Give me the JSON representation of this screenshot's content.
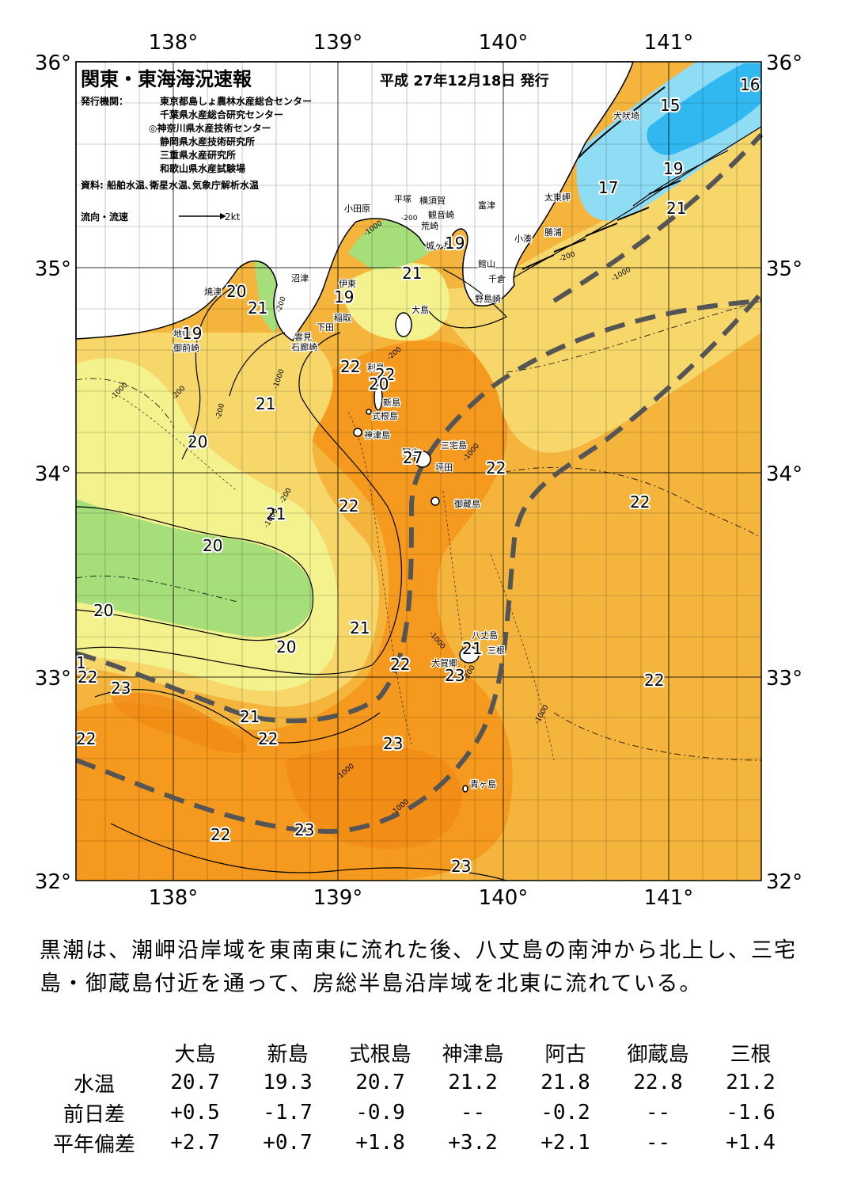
{
  "map": {
    "title": "関東・東海海況速報",
    "issue_date": "平成 27年12月18日 発行",
    "publisher_label": "発行機関：",
    "publishers": [
      "東京都島しょ農林水産総合センター",
      "千葉県水産総合研究センター",
      "◎神奈川県水産技術センター",
      "静岡県水産技術研究所",
      "三重県水産研究所",
      "和歌山県水産試験場"
    ],
    "sources": "資料: 船舶水温､衛星水温､気象庁解析水温",
    "current_legend": "流向・流速",
    "current_scale": "2kt",
    "lon_labels": [
      "138°",
      "139°",
      "140°",
      "141°"
    ],
    "lat_labels": [
      "36°",
      "35°",
      "34°",
      "33°",
      "32°"
    ],
    "place_names": {
      "inubosaki": "犬吠埼",
      "taitomisaki": "太東岬",
      "katsuura": "勝浦",
      "kominato": "小湊",
      "tateyama": "館山",
      "chikura": "千倉",
      "nojimazaki": "野島崎",
      "futtsu": "富津",
      "kannonzaki": "観音崎",
      "yokosuka": "横須賀",
      "hiratsuka": "平塚",
      "odawara": "小田原",
      "arasaki": "荒崎",
      "jogashima": "城ヶ島",
      "ito": "伊東",
      "numazu": "沼津",
      "yaizu": "焼津",
      "inatori": "稲取",
      "shimoda": "下田",
      "mikomoto": "雲見",
      "irozaki": "石廊崎",
      "jizo": "地頭",
      "omaezaki": "御前崎",
      "oshima": "大島",
      "toshima": "利島",
      "niijima": "新島",
      "shikinejima": "式根島",
      "kozushima": "神津島",
      "ako": "阿古",
      "miyakejima": "三宅島",
      "tsubota": "坪田",
      "mikurajima": "御蔵島",
      "hachijojima": "八丈島",
      "mitsune": "三根",
      "okago": "大賀郷",
      "aogashima": "青ヶ島"
    },
    "isotherms": [
      "16",
      "15",
      "19",
      "17",
      "21",
      "19",
      "19",
      "21",
      "20",
      "21",
      "19",
      "22",
      "22",
      "20",
      "21",
      "20",
      "21",
      "22",
      "27",
      "22",
      "22",
      "20",
      "21",
      "20",
      "21",
      "20",
      "22",
      "23",
      "22",
      "22",
      "21",
      "22",
      "23",
      "23",
      "22",
      "23",
      "23",
      "22",
      "1"
    ],
    "depth_labels": [
      "-200",
      "-1000",
      "-200",
      "-1000",
      "-200",
      "-1000",
      "-200",
      "-1000",
      "-1000",
      "-200",
      "-1000",
      "-200",
      "-1000",
      "-1000",
      "-200",
      "-200",
      "-1000",
      "-1000"
    ],
    "colors": {
      "very_cold": "#31b8f0",
      "cold": "#8fdcf5",
      "cool_green": "#a6de7a",
      "mild": "#f4f28c",
      "warm_yellow": "#f7d66a",
      "warm": "#f5b53c",
      "hot": "#f59a1e",
      "hotter": "#f08a14",
      "kuroshio_path": "#555555",
      "land": "#ffffff"
    }
  },
  "summary": "黒潮は、潮岬沿岸域を東南東に流れた後、八丈島の南沖から北上し、三宅島・御蔵島付近を通って、房総半島沿岸域を北東に流れている。",
  "table": {
    "stations": [
      "大島",
      "新島",
      "式根島",
      "神津島",
      "阿古",
      "御蔵島",
      "三根"
    ],
    "rows": [
      {
        "label": "水温",
        "values": [
          "20.7",
          "19.3",
          "20.7",
          "21.2",
          "21.8",
          "22.8",
          "21.2"
        ]
      },
      {
        "label": "前日差",
        "values": [
          "+0.5",
          "-1.7",
          "-0.9",
          "--",
          "-0.2",
          "--",
          "-1.6"
        ]
      },
      {
        "label": "平年偏差",
        "values": [
          "+2.7",
          "+0.7",
          "+1.8",
          "+3.2",
          "+2.1",
          "--",
          "+1.4"
        ]
      }
    ]
  }
}
